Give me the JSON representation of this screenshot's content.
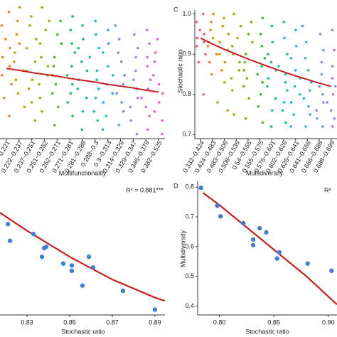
{
  "chart_data": [
    {
      "type": "strip",
      "x_label": "Multifunctionality",
      "ylim": [
        0.7,
        1.0
      ],
      "categories": [
        "~0.221",
        "0.222~0.237",
        "0.237~0.251",
        "0.251~0.262",
        "0.262~0.271",
        "0.271~0.281",
        "0.281~0.288",
        "0.288~0.3",
        "0.3~0.313",
        "0.314~0.329",
        "0.329~0.347",
        "0.346~0.379",
        "0.382~0.525"
      ],
      "colors": [
        "#e8862a",
        "#d59a00",
        "#b5a800",
        "#8db600",
        "#4dbb1a",
        "#1fbf55",
        "#16c08f",
        "#14bfbf",
        "#2aaee6",
        "#6c8ff0",
        "#a67af5",
        "#d468e8",
        "#ee5fcf"
      ],
      "values": [
        [
          0.98,
          0.95,
          0.92,
          0.9,
          0.88,
          0.86,
          0.84,
          0.82,
          0.79,
          0.75
        ],
        [
          0.99,
          0.96,
          0.93,
          0.91,
          0.89,
          0.87,
          0.85,
          0.83,
          0.8,
          0.77
        ],
        [
          0.97,
          0.95,
          0.92,
          0.9,
          0.87,
          0.85,
          0.83,
          0.81,
          0.78,
          0.74
        ],
        [
          0.99,
          0.96,
          0.94,
          0.91,
          0.88,
          0.86,
          0.84,
          0.82,
          0.79,
          0.76
        ],
        [
          0.96,
          0.93,
          0.91,
          0.88,
          0.86,
          0.84,
          0.82,
          0.8,
          0.77,
          0.73
        ],
        [
          0.97,
          0.94,
          0.91,
          0.89,
          0.86,
          0.84,
          0.82,
          0.8,
          0.78,
          0.75
        ],
        [
          0.95,
          0.92,
          0.9,
          0.87,
          0.85,
          0.83,
          0.81,
          0.79,
          0.76,
          0.72
        ],
        [
          0.96,
          0.93,
          0.9,
          0.88,
          0.85,
          0.83,
          0.81,
          0.79,
          0.76,
          0.74
        ],
        [
          0.94,
          0.91,
          0.89,
          0.86,
          0.84,
          0.82,
          0.8,
          0.78,
          0.75,
          0.72
        ],
        [
          0.95,
          0.92,
          0.89,
          0.87,
          0.84,
          0.82,
          0.8,
          0.78,
          0.76,
          0.73
        ],
        [
          0.93,
          0.9,
          0.88,
          0.85,
          0.83,
          0.81,
          0.79,
          0.77,
          0.74,
          0.71
        ],
        [
          0.94,
          0.91,
          0.88,
          0.86,
          0.83,
          0.81,
          0.79,
          0.77,
          0.75,
          0.72
        ],
        [
          0.92,
          0.89,
          0.87,
          0.84,
          0.82,
          0.8,
          0.78,
          0.76,
          0.74,
          0.71
        ]
      ],
      "fit": {
        "color": "#c81e1e",
        "values": [
          0.855,
          0.851,
          0.846,
          0.842,
          0.838,
          0.833,
          0.829,
          0.825,
          0.82,
          0.816,
          0.812,
          0.807,
          0.803
        ]
      }
    },
    {
      "type": "strip",
      "label": "C",
      "x_label": "Multidiversity",
      "y_label": "Stochastic ratio",
      "ylim": [
        0.69,
        1.01
      ],
      "yticks": [
        0.7,
        0.8,
        0.9,
        {
          "value": 1.0,
          "label": "1.0"
        }
      ],
      "categories": [
        "0.332~0.424",
        "0.424~0.483",
        "0.483~0.506",
        "0.508~0.536",
        "0.54~0.555",
        "0.555~0.575",
        "0.576~0.601",
        "0.602~0.626",
        "0.626~0.641",
        "0.641~0.666",
        "0.666~0.688",
        "0.688~0.699"
      ],
      "colors": [
        "#f0607a",
        "#e8862a",
        "#c99f00",
        "#a3ad00",
        "#6cb800",
        "#30bd3a",
        "#16c07a",
        "#16c0ae",
        "#17bad6",
        "#3aa5ef",
        "#7c8cf3",
        "#b177f0"
      ],
      "values": [
        [
          1.0,
          0.98,
          0.96,
          0.95,
          0.94,
          0.93,
          0.92,
          0.9,
          0.88,
          0.8
        ],
        [
          1.0,
          0.98,
          0.96,
          0.94,
          0.93,
          0.92,
          0.9,
          0.88,
          0.85,
          0.78
        ],
        [
          0.99,
          0.97,
          0.95,
          0.93,
          0.91,
          0.9,
          0.88,
          0.86,
          0.83,
          0.76
        ],
        [
          1.0,
          0.97,
          0.94,
          0.92,
          0.9,
          0.88,
          0.86,
          0.84,
          0.81,
          0.75
        ],
        [
          0.98,
          0.95,
          0.93,
          0.9,
          0.88,
          0.86,
          0.84,
          0.82,
          0.79,
          0.74
        ],
        [
          0.99,
          0.95,
          0.92,
          0.89,
          0.87,
          0.85,
          0.83,
          0.8,
          0.77,
          0.73
        ],
        [
          0.97,
          0.93,
          0.9,
          0.88,
          0.86,
          0.84,
          0.82,
          0.79,
          0.76,
          0.72
        ],
        [
          0.98,
          0.94,
          0.9,
          0.87,
          0.85,
          0.83,
          0.81,
          0.78,
          0.76,
          0.73
        ],
        [
          0.96,
          0.92,
          0.89,
          0.86,
          0.84,
          0.82,
          0.8,
          0.78,
          0.75,
          0.72
        ],
        [
          0.97,
          0.93,
          0.89,
          0.86,
          0.83,
          0.81,
          0.79,
          0.77,
          0.75,
          0.72
        ],
        [
          0.95,
          0.91,
          0.88,
          0.85,
          0.82,
          0.8,
          0.78,
          0.76,
          0.74,
          0.72
        ],
        [
          0.96,
          0.91,
          0.87,
          0.84,
          0.82,
          0.8,
          0.78,
          0.76,
          0.74,
          0.72
        ]
      ],
      "fit": {
        "color": "#c81e1e",
        "values": [
          0.94,
          0.925,
          0.912,
          0.9,
          0.888,
          0.877,
          0.866,
          0.856,
          0.846,
          0.837,
          0.828,
          0.82
        ]
      }
    },
    {
      "type": "scatter",
      "x_label": "Stochastic ratio",
      "annotation": "R² = 0.881***",
      "color": "#3f7fd6",
      "xlim": [
        0.8173,
        0.8947
      ],
      "ylim": [
        0.2,
        0.4
      ],
      "xticks": [
        0.83,
        0.85,
        0.87,
        0.89
      ],
      "x": [
        0.821,
        0.822,
        0.833,
        0.837,
        0.838,
        0.839,
        0.847,
        0.851,
        0.851,
        0.856,
        0.859,
        0.861,
        0.875,
        0.89
      ],
      "values": [
        0.336,
        0.311,
        0.321,
        0.287,
        0.3,
        0.302,
        0.277,
        0.274,
        0.266,
        0.244,
        0.287,
        0.271,
        0.236,
        0.208
      ],
      "fit": {
        "color": "#c81e1e",
        "x": [
          0.8173,
          0.83,
          0.85,
          0.87,
          0.89,
          0.8947
        ],
        "values": [
          0.353,
          0.326,
          0.287,
          0.253,
          0.226,
          0.221
        ]
      }
    },
    {
      "type": "scatter",
      "label": "D",
      "x_label": "Stochastic ratio",
      "y_label": "Multidiversity",
      "annotation": "R²",
      "color": "#3f7fd6",
      "xlim": [
        0.78,
        0.908
      ],
      "ylim": [
        0.37,
        0.82
      ],
      "xticks": [
        {
          "value": 0.8,
          "label": "0.80"
        },
        0.85,
        {
          "value": 0.9,
          "label": "0.90"
        }
      ],
      "yticks": [
        0.4,
        0.5,
        0.6,
        0.7,
        0.8
      ],
      "x": [
        0.783,
        0.798,
        0.801,
        0.822,
        0.831,
        0.831,
        0.837,
        0.843,
        0.853,
        0.855,
        0.881,
        0.903
      ],
      "values": [
        0.798,
        0.738,
        0.702,
        0.679,
        0.624,
        0.605,
        0.662,
        0.648,
        0.56,
        0.581,
        0.543,
        0.519
      ],
      "fit": {
        "color": "#c81e1e",
        "x": [
          0.785,
          0.8,
          0.82,
          0.85,
          0.88,
          0.908
        ],
        "values": [
          0.781,
          0.74,
          0.68,
          0.59,
          0.5,
          0.405
        ]
      }
    }
  ]
}
